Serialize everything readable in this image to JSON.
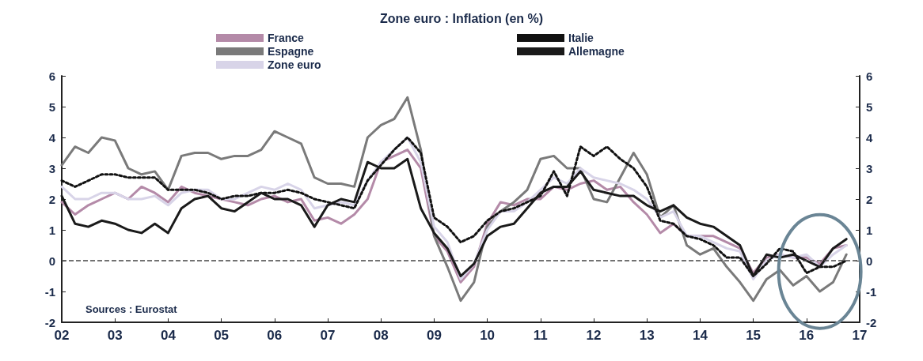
{
  "chart_data": {
    "type": "line",
    "title": "Zone euro : Inflation (en %)",
    "x": [
      2002,
      2002.25,
      2002.5,
      2002.75,
      2003,
      2003.25,
      2003.5,
      2003.75,
      2004,
      2004.25,
      2004.5,
      2004.75,
      2005,
      2005.25,
      2005.5,
      2005.75,
      2006,
      2006.25,
      2006.5,
      2006.75,
      2007,
      2007.25,
      2007.5,
      2007.75,
      2008,
      2008.25,
      2008.5,
      2008.75,
      2009,
      2009.25,
      2009.5,
      2009.75,
      2010,
      2010.25,
      2010.5,
      2010.75,
      2011,
      2011.25,
      2011.5,
      2011.75,
      2012,
      2012.25,
      2012.5,
      2012.75,
      2013,
      2013.25,
      2013.5,
      2013.75,
      2014,
      2014.25,
      2014.5,
      2014.75,
      2015,
      2015.25,
      2015.5,
      2015.75,
      2016,
      2016.25,
      2016.5,
      2016.75
    ],
    "series": [
      {
        "name": "France",
        "color": "#b48aa8",
        "values": [
          1.9,
          1.5,
          1.8,
          2.0,
          2.2,
          2.0,
          2.4,
          2.2,
          1.9,
          2.4,
          2.2,
          2.1,
          2.0,
          1.9,
          1.8,
          2.0,
          2.1,
          1.9,
          2.0,
          1.3,
          1.4,
          1.2,
          1.5,
          2.0,
          3.2,
          3.4,
          3.6,
          3.0,
          0.8,
          0.3,
          -0.7,
          -0.2,
          1.2,
          1.9,
          1.8,
          2.0,
          2.0,
          2.4,
          2.3,
          2.5,
          2.6,
          2.3,
          2.4,
          1.9,
          1.5,
          0.9,
          1.2,
          0.8,
          0.8,
          0.8,
          0.6,
          0.4,
          -0.4,
          0.1,
          0.2,
          0.1,
          0.1,
          -0.1,
          0.4,
          0.5
        ]
      },
      {
        "name": "Espagne",
        "color": "#7a7a7a",
        "values": [
          3.1,
          3.7,
          3.5,
          4.0,
          3.9,
          3.0,
          2.8,
          2.9,
          2.3,
          3.4,
          3.5,
          3.5,
          3.3,
          3.4,
          3.4,
          3.6,
          4.2,
          4.0,
          3.8,
          2.7,
          2.5,
          2.5,
          2.4,
          4.0,
          4.4,
          4.6,
          5.3,
          3.6,
          0.8,
          -0.2,
          -1.3,
          -0.7,
          1.1,
          1.6,
          1.9,
          2.3,
          3.3,
          3.4,
          3.0,
          3.0,
          2.0,
          1.9,
          2.7,
          3.5,
          2.8,
          1.4,
          1.8,
          0.5,
          0.2,
          0.4,
          -0.2,
          -0.7,
          -1.3,
          -0.6,
          -0.3,
          -0.8,
          -0.5,
          -1.0,
          -0.7,
          0.2
        ]
      },
      {
        "name": "Zone euro",
        "color": "#d8d4e8",
        "values": [
          2.4,
          2.0,
          2.0,
          2.2,
          2.2,
          2.0,
          2.0,
          2.1,
          1.8,
          2.2,
          2.3,
          2.3,
          2.0,
          2.0,
          2.2,
          2.4,
          2.3,
          2.5,
          2.3,
          1.7,
          1.8,
          1.9,
          1.8,
          2.6,
          3.2,
          3.6,
          4.0,
          3.2,
          1.1,
          0.6,
          -0.6,
          -0.1,
          1.0,
          1.6,
          1.6,
          1.9,
          2.3,
          2.7,
          2.5,
          3.0,
          2.7,
          2.6,
          2.5,
          2.3,
          2.0,
          1.4,
          1.6,
          0.8,
          0.8,
          0.6,
          0.4,
          0.3,
          -0.6,
          0.0,
          0.2,
          0.1,
          0.2,
          -0.2,
          0.2,
          0.5
        ]
      },
      {
        "name": "Italie",
        "color": "#111111",
        "line_style": "dotted",
        "values": [
          2.6,
          2.4,
          2.6,
          2.8,
          2.8,
          2.7,
          2.7,
          2.7,
          2.3,
          2.3,
          2.3,
          2.2,
          2.0,
          2.1,
          2.1,
          2.2,
          2.2,
          2.3,
          2.2,
          2.0,
          1.9,
          1.8,
          1.7,
          2.6,
          3.1,
          3.6,
          4.0,
          3.5,
          1.4,
          1.1,
          0.6,
          0.8,
          1.3,
          1.6,
          1.7,
          1.9,
          2.1,
          2.9,
          2.1,
          3.7,
          3.4,
          3.7,
          3.3,
          3.0,
          2.4,
          1.3,
          1.2,
          0.8,
          0.7,
          0.5,
          0.1,
          0.1,
          -0.5,
          -0.1,
          0.4,
          0.3,
          -0.4,
          -0.2,
          -0.2,
          0.0
        ]
      },
      {
        "name": "Allemagne",
        "color": "#1a1a1a",
        "values": [
          2.1,
          1.2,
          1.1,
          1.3,
          1.2,
          1.0,
          0.9,
          1.2,
          0.9,
          1.7,
          2.0,
          2.1,
          1.7,
          1.6,
          1.9,
          2.2,
          2.0,
          2.0,
          1.8,
          1.1,
          1.8,
          2.0,
          1.9,
          3.2,
          3.0,
          3.0,
          3.3,
          1.7,
          0.9,
          0.4,
          -0.5,
          -0.1,
          0.8,
          1.1,
          1.2,
          1.7,
          2.2,
          2.4,
          2.4,
          2.9,
          2.3,
          2.2,
          2.1,
          2.1,
          1.8,
          1.6,
          1.8,
          1.4,
          1.2,
          1.1,
          0.8,
          0.5,
          -0.5,
          0.2,
          0.1,
          0.2,
          0.0,
          -0.2,
          0.4,
          0.7
        ]
      }
    ],
    "xlim": [
      2002,
      2017
    ],
    "xticks": [
      {
        "value": 2002,
        "label": "02"
      },
      {
        "value": 2003,
        "label": "03"
      },
      {
        "value": 2004,
        "label": "04"
      },
      {
        "value": 2005,
        "label": "05"
      },
      {
        "value": 2006,
        "label": "06"
      },
      {
        "value": 2007,
        "label": "07"
      },
      {
        "value": 2008,
        "label": "08"
      },
      {
        "value": 2009,
        "label": "09"
      },
      {
        "value": 2010,
        "label": "10"
      },
      {
        "value": 2011,
        "label": "11"
      },
      {
        "value": 2012,
        "label": "12"
      },
      {
        "value": 2013,
        "label": "13"
      },
      {
        "value": 2014,
        "label": "14"
      },
      {
        "value": 2015,
        "label": "15"
      },
      {
        "value": 2016,
        "label": "16"
      },
      {
        "value": 2017,
        "label": "17"
      }
    ],
    "ylim": [
      -2,
      6
    ],
    "yticks": [
      -2,
      -1,
      0,
      1,
      2,
      3,
      4,
      5,
      6
    ],
    "y2lim": [
      -2,
      6
    ],
    "y2ticks": [
      -2,
      -1,
      0,
      1,
      2,
      3,
      4,
      5,
      6
    ],
    "ref_lines": [
      {
        "axis": "y",
        "value": 0,
        "color": "#444444",
        "line_style": "dashed"
      }
    ],
    "annotations": [
      "Sources : Eurostat"
    ],
    "legend": "top",
    "grid": false,
    "marker": "none",
    "line_style": "solid"
  }
}
